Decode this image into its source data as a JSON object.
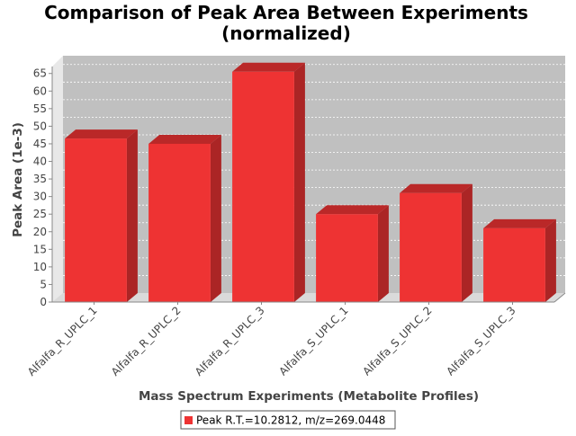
{
  "chart_data": {
    "type": "bar",
    "title_lines": [
      "Comparison of Peak Area Between Experiments",
      "(normalized)"
    ],
    "xlabel": "Mass Spectrum Experiments (Metabolite Profiles)",
    "ylabel": "Peak Area (1e-3)",
    "ylim": [
      0,
      68
    ],
    "yticks": [
      0,
      5,
      10,
      15,
      20,
      25,
      30,
      35,
      40,
      45,
      50,
      55,
      60,
      65
    ],
    "grid": true,
    "legend_position": "bottom",
    "categories": [
      "Alfalfa_R_UPLC_1",
      "Alfalfa_R_UPLC_2",
      "Alfalfa_R_UPLC_3",
      "Alfalfa_S_UPLC_1",
      "Alfalfa_S_UPLC_2",
      "Alfalfa_S_UPLC_3"
    ],
    "series": [
      {
        "name": "Peak R.T.=10.2812, m/z=269.0448",
        "color": "#ee3333",
        "values": [
          46.5,
          45.0,
          65.5,
          25.0,
          31.0,
          21.0
        ]
      }
    ]
  }
}
